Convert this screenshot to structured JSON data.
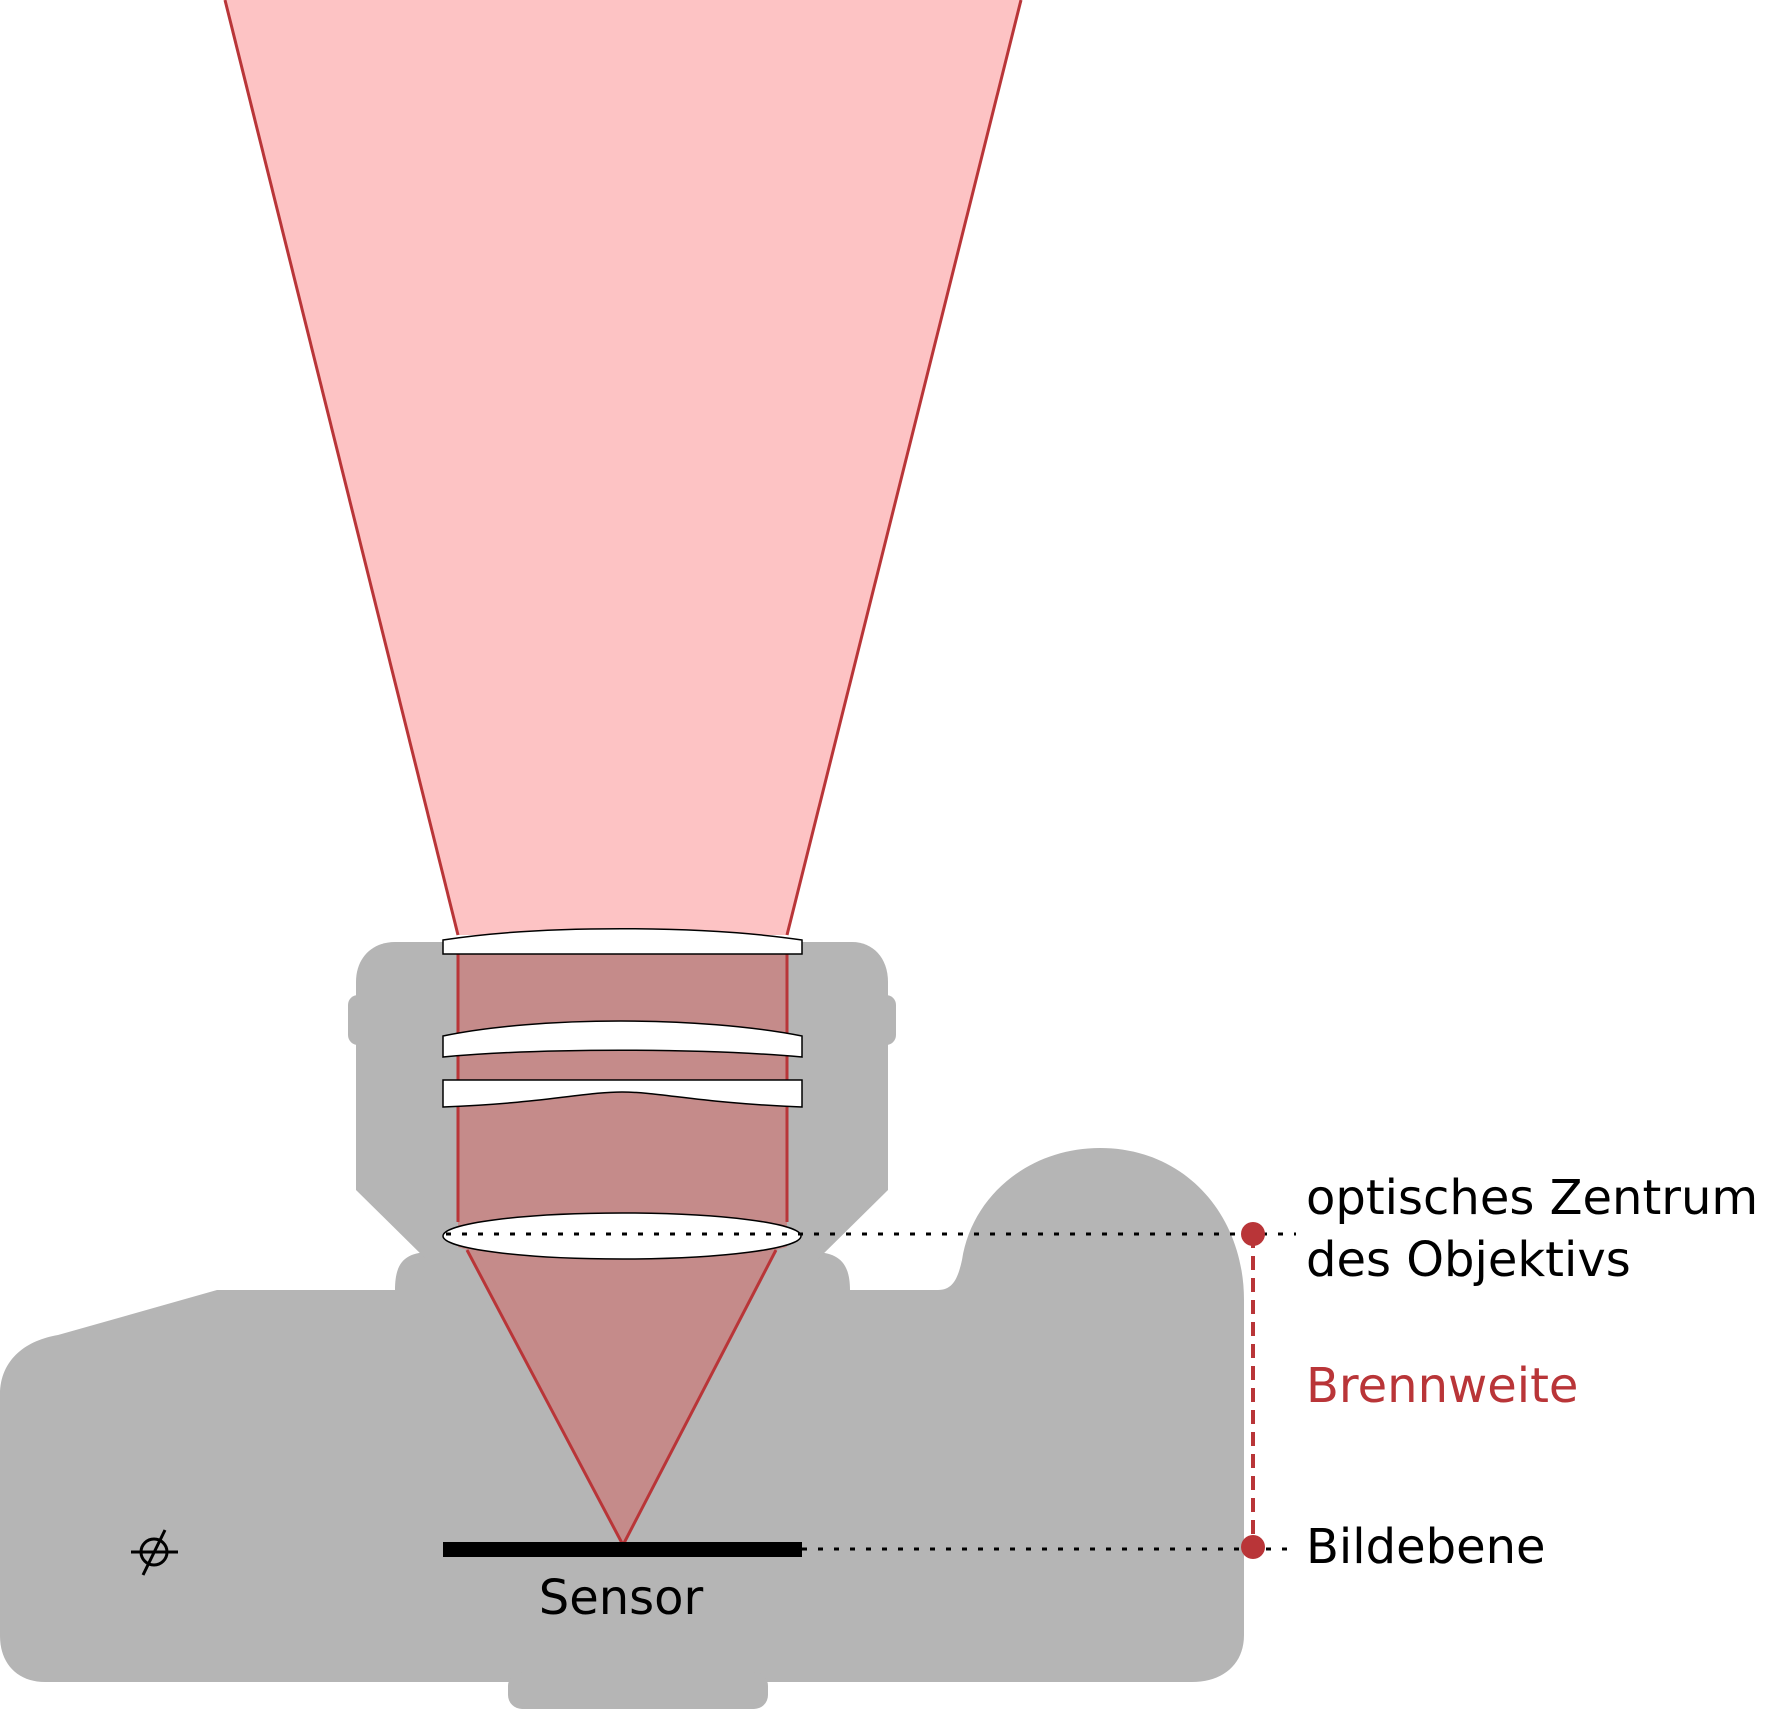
{
  "diagram": {
    "labels": {
      "sensor": "Sensor",
      "optical_center_line1": "optisches Zentrum",
      "optical_center_line2": "des Objektivs",
      "focal_length": "Brennweite",
      "image_plane": "Bildebene"
    },
    "symbols": {
      "film_plane_mark": "film-plane-symbol"
    },
    "colors": {
      "camera_body": "#b5b5b5",
      "light_cone": "#fdc3c4",
      "light_inner": "#c58b8a",
      "ray_stroke": "#b93538",
      "accent": "#b93538",
      "lens_fill": "#ffffff",
      "sensor": "#000000",
      "text": "#000000"
    }
  }
}
